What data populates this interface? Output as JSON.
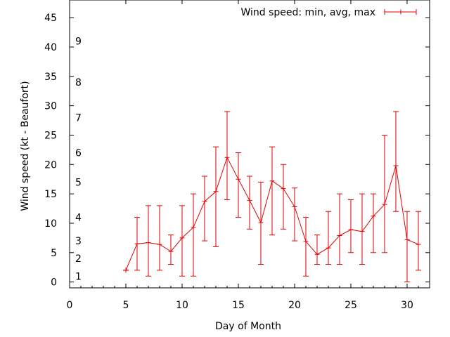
{
  "chart_data": {
    "type": "line",
    "xlabel": "Day of Month",
    "ylabel": "Wind speed (kt - Beaufort)",
    "xlim": [
      0,
      32
    ],
    "ylim": [
      -1,
      48
    ],
    "xticks": [
      0,
      5,
      10,
      15,
      20,
      25,
      30
    ],
    "yticks": [
      0,
      5,
      10,
      15,
      20,
      25,
      30,
      35,
      40,
      45
    ],
    "grid": false,
    "legend_position": "top-right",
    "beaufort_labels": [
      {
        "label": "1",
        "y": 1
      },
      {
        "label": "2",
        "y": 4
      },
      {
        "label": "3",
        "y": 7
      },
      {
        "label": "4",
        "y": 11
      },
      {
        "label": "5",
        "y": 17
      },
      {
        "label": "6",
        "y": 22
      },
      {
        "label": "7",
        "y": 28
      },
      {
        "label": "8",
        "y": 34
      },
      {
        "label": "9",
        "y": 41
      }
    ],
    "series": [
      {
        "name": "Wind speed: min, avg, max",
        "color": "#e00000",
        "points": [
          {
            "x": 5,
            "min": 2,
            "avg": 2,
            "max": 2
          },
          {
            "x": 6,
            "min": 2,
            "avg": 6.5,
            "max": 11
          },
          {
            "x": 7,
            "min": 1,
            "avg": 6.7,
            "max": 13
          },
          {
            "x": 8,
            "min": 2,
            "avg": 6.4,
            "max": 13
          },
          {
            "x": 9,
            "min": 3,
            "avg": 5.2,
            "max": 8
          },
          {
            "x": 10,
            "min": 1,
            "avg": 7.5,
            "max": 13
          },
          {
            "x": 11,
            "min": 1,
            "avg": 9.3,
            "max": 15
          },
          {
            "x": 12,
            "min": 7,
            "avg": 13.7,
            "max": 18
          },
          {
            "x": 13,
            "min": 6,
            "avg": 15.4,
            "max": 23
          },
          {
            "x": 14,
            "min": 14,
            "avg": 21.2,
            "max": 29
          },
          {
            "x": 15,
            "min": 11,
            "avg": 17.5,
            "max": 22
          },
          {
            "x": 16,
            "min": 9,
            "avg": 13.9,
            "max": 18
          },
          {
            "x": 17,
            "min": 3,
            "avg": 10.1,
            "max": 17
          },
          {
            "x": 18,
            "min": 8,
            "avg": 17.2,
            "max": 23
          },
          {
            "x": 19,
            "min": 9,
            "avg": 15.9,
            "max": 20
          },
          {
            "x": 20,
            "min": 7,
            "avg": 12.8,
            "max": 16
          },
          {
            "x": 21,
            "min": 1,
            "avg": 6.9,
            "max": 11
          },
          {
            "x": 22,
            "min": 3,
            "avg": 4.7,
            "max": 8
          },
          {
            "x": 23,
            "min": 3,
            "avg": 5.8,
            "max": 12
          },
          {
            "x": 24,
            "min": 3,
            "avg": 7.9,
            "max": 15
          },
          {
            "x": 25,
            "min": 5,
            "avg": 8.9,
            "max": 14
          },
          {
            "x": 26,
            "min": 3,
            "avg": 8.6,
            "max": 15
          },
          {
            "x": 27,
            "min": 5,
            "avg": 11.2,
            "max": 15
          },
          {
            "x": 28,
            "min": 5,
            "avg": 13.2,
            "max": 25
          },
          {
            "x": 29,
            "min": 12,
            "avg": 19.8,
            "max": 29
          },
          {
            "x": 30,
            "min": 0,
            "avg": 7.2,
            "max": 12
          },
          {
            "x": 31,
            "min": 2,
            "avg": 6.4,
            "max": 12
          }
        ]
      }
    ]
  }
}
